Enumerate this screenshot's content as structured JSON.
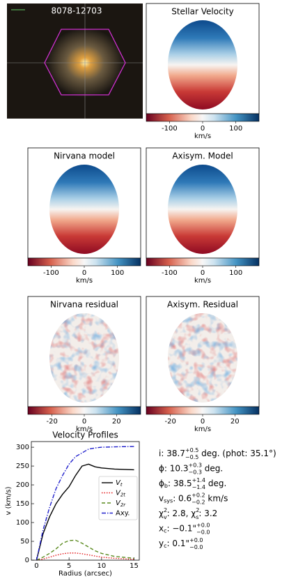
{
  "image": {
    "label": "8078-12703"
  },
  "maps": [
    {
      "title": "Stellar Velocity",
      "kind": "velocity",
      "clim": [
        -170,
        170
      ],
      "cticks": [
        -100,
        0,
        100
      ],
      "clabel": "km/s"
    },
    {
      "title": "Nirvana model",
      "kind": "velocity",
      "clim": [
        -170,
        170
      ],
      "cticks": [
        -100,
        0,
        100
      ],
      "clabel": "km/s"
    },
    {
      "title": "Axisym. Model",
      "kind": "velocity",
      "clim": [
        -170,
        170
      ],
      "cticks": [
        -100,
        0,
        100
      ],
      "clabel": "km/s"
    },
    {
      "title": "Nirvana residual",
      "kind": "residual",
      "clim": [
        -35,
        35
      ],
      "cticks": [
        -20,
        0,
        20
      ],
      "clabel": "km/s"
    },
    {
      "title": "Axisym. Residual",
      "kind": "residual",
      "clim": [
        -35,
        35
      ],
      "cticks": [
        -20,
        0,
        20
      ],
      "clabel": "km/s"
    }
  ],
  "chart_data": {
    "type": "line",
    "title": "Velocity Profiles",
    "xlabel": "Radius (arcsec)",
    "ylabel": "v (km/s)",
    "x": [
      0,
      1,
      2,
      3,
      4,
      5,
      6,
      7,
      8,
      9,
      10,
      12,
      15
    ],
    "xlim": [
      -0.8,
      15.8
    ],
    "ylim": [
      0,
      315
    ],
    "xticks": [
      0,
      5,
      10,
      15
    ],
    "yticks": [
      0,
      50,
      100,
      150,
      200,
      250,
      300
    ],
    "legend": "right",
    "series": [
      {
        "name": "Vt",
        "color": "#000000",
        "dash": "solid",
        "values": [
          0,
          70,
          115,
          150,
          175,
          195,
          225,
          250,
          255,
          248,
          245,
          242,
          240
        ]
      },
      {
        "name": "V2t",
        "color": "#e41a1c",
        "dash": "dotted",
        "values": [
          0,
          3,
          8,
          13,
          17,
          19,
          19,
          17,
          14,
          11,
          8,
          5,
          2
        ]
      },
      {
        "name": "V2r",
        "color": "#5a8a1e",
        "dash": "dashed",
        "values": [
          0,
          8,
          18,
          30,
          45,
          52,
          53,
          45,
          35,
          25,
          18,
          10,
          5
        ]
      },
      {
        "name": "Axy.",
        "color": "#1f1fcc",
        "dash": "dashdot",
        "values": [
          0,
          80,
          140,
          190,
          225,
          255,
          275,
          285,
          295,
          298,
          300,
          301,
          302
        ]
      }
    ]
  },
  "params": [
    [
      {
        "text": "i: 38.7"
      },
      {
        "text": "+0.5",
        "pos": "sup"
      },
      {
        "text": "−0.5",
        "pos": "sub"
      },
      {
        "text": " deg. (phot: 35.1°)"
      }
    ],
    [
      {
        "text": "ϕ: 10.3"
      },
      {
        "text": "+0.3",
        "pos": "sup"
      },
      {
        "text": "−0.3",
        "pos": "sub"
      },
      {
        "text": " deg."
      }
    ],
    [
      {
        "text": "ϕ"
      },
      {
        "text": "b",
        "pos": "low"
      },
      {
        "text": ": 38.5"
      },
      {
        "text": "+1.4",
        "pos": "sup"
      },
      {
        "text": "−1.4",
        "pos": "sub"
      },
      {
        "text": " deg."
      }
    ],
    [
      {
        "text": "v"
      },
      {
        "text": "sys",
        "pos": "low"
      },
      {
        "text": ": 0.6"
      },
      {
        "text": "+0.2",
        "pos": "sup"
      },
      {
        "text": "−0.2",
        "pos": "sub"
      },
      {
        "text": " km/s"
      }
    ],
    [
      {
        "text": "χ"
      },
      {
        "text": "2",
        "pos": "sup"
      },
      {
        "text": "v",
        "pos": "sub"
      },
      {
        "text": ": 2.8,  χ"
      },
      {
        "text": "2",
        "pos": "sup"
      },
      {
        "text": "s",
        "pos": "sub"
      },
      {
        "text": ": 3.2"
      }
    ],
    [
      {
        "text": "x"
      },
      {
        "text": "c",
        "pos": "low"
      },
      {
        "text": ": −0.1\""
      },
      {
        "text": "+0.0",
        "pos": "sup"
      },
      {
        "text": "−0.0",
        "pos": "sub"
      }
    ],
    [
      {
        "text": "y"
      },
      {
        "text": "c",
        "pos": "low"
      },
      {
        "text": ": 0.1\""
      },
      {
        "text": "+0.0",
        "pos": "sup"
      },
      {
        "text": "−0.0",
        "pos": "sub"
      }
    ]
  ]
}
